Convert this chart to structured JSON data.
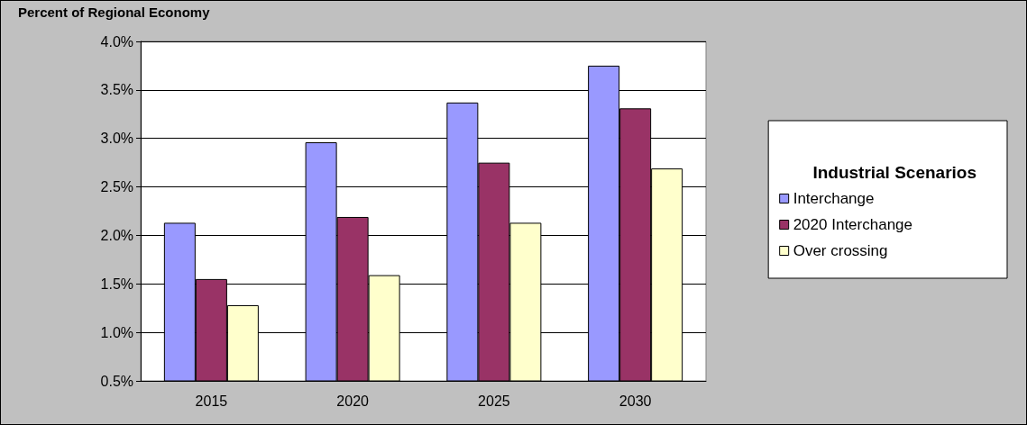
{
  "chart_data": {
    "type": "bar",
    "ylabel": "Percent of Regional Economy",
    "legend_title": "Industrial Scenarios",
    "categories": [
      "2015",
      "2020",
      "2025",
      "2030"
    ],
    "series": [
      {
        "name": "Interchange",
        "color": "#9999ff",
        "values": [
          2.13,
          2.96,
          3.37,
          3.75
        ]
      },
      {
        "name": "2020 Interchange",
        "color": "#993366",
        "values": [
          1.55,
          2.19,
          2.75,
          3.31
        ]
      },
      {
        "name": "Over crossing",
        "color": "#ffffcc",
        "values": [
          1.28,
          1.59,
          2.13,
          2.69
        ]
      }
    ],
    "ylim": [
      0.5,
      4.0
    ],
    "yticks": [
      {
        "value": 0.5,
        "label": "0.5%"
      },
      {
        "value": 1.0,
        "label": "1.0%"
      },
      {
        "value": 1.5,
        "label": "1.5%"
      },
      {
        "value": 2.0,
        "label": "2.0%"
      },
      {
        "value": 2.5,
        "label": "2.5%"
      },
      {
        "value": 3.0,
        "label": "3.0%"
      },
      {
        "value": 3.5,
        "label": "3.5%"
      },
      {
        "value": 4.0,
        "label": "4.0%"
      }
    ],
    "grid": "y",
    "legend": "right"
  }
}
